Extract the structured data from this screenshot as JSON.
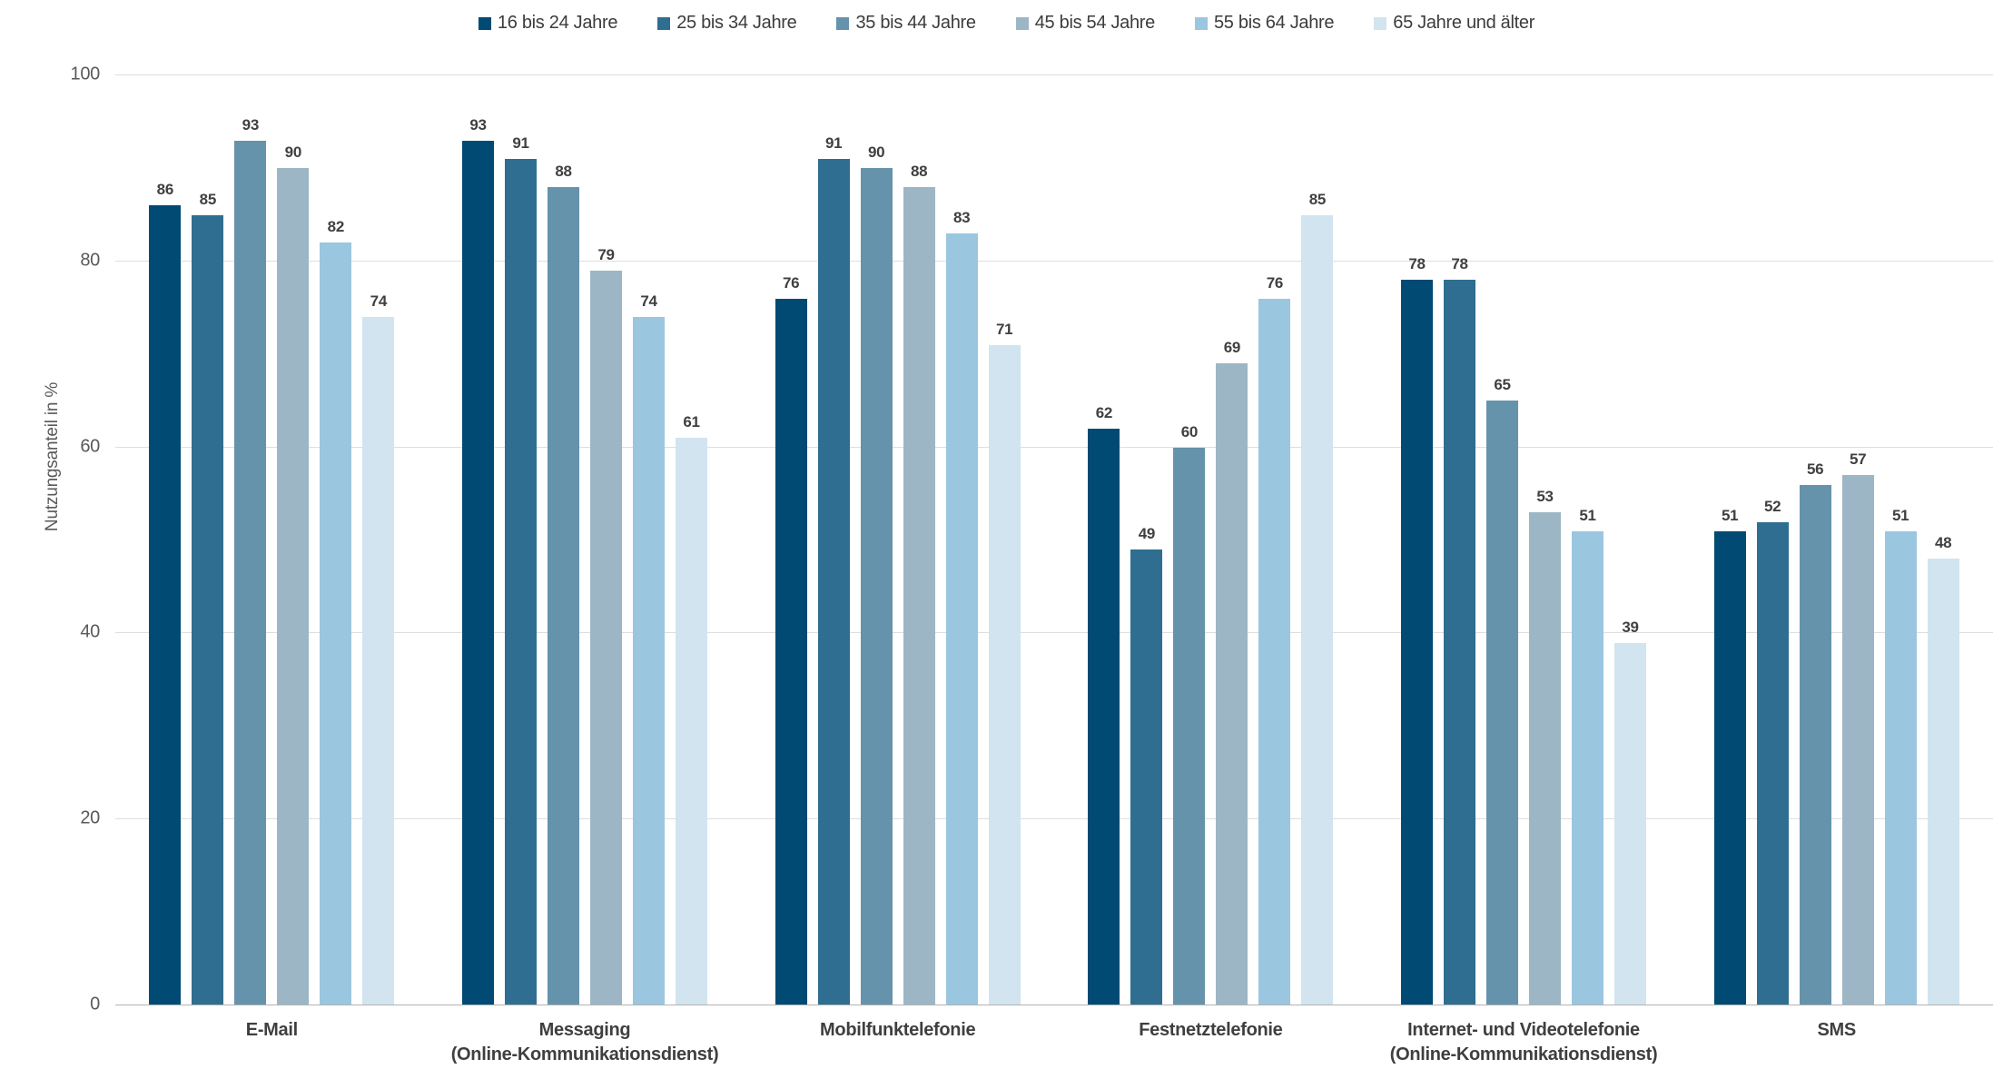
{
  "chart_data": {
    "type": "bar",
    "title": "",
    "ylabel": "Nutzungsanteil in %",
    "xlabel": "",
    "ylim": [
      0,
      100
    ],
    "yticks": [
      0,
      20,
      40,
      60,
      80,
      100
    ],
    "grid": true,
    "legend_position": "top-center",
    "categories": [
      [
        "E-Mail"
      ],
      [
        "Messaging",
        "(Online-Kommunikationsdienst)"
      ],
      [
        "Mobilfunktelefonie"
      ],
      [
        "Festnetztelefonie"
      ],
      [
        "Internet- und Videotelefonie",
        "(Online-Kommunikationsdienst)"
      ],
      [
        "SMS"
      ]
    ],
    "series": [
      {
        "name": "16 bis 24 Jahre",
        "color": "#004a73",
        "values": [
          86,
          93,
          76,
          62,
          78,
          51
        ]
      },
      {
        "name": "25 bis 34 Jahre",
        "color": "#2f6e90",
        "values": [
          85,
          91,
          91,
          49,
          78,
          52
        ]
      },
      {
        "name": "35 bis 44 Jahre",
        "color": "#6593ac",
        "values": [
          93,
          88,
          90,
          60,
          65,
          56
        ]
      },
      {
        "name": "45 bis 54 Jahre",
        "color": "#9db6c5",
        "values": [
          90,
          79,
          88,
          69,
          53,
          57
        ]
      },
      {
        "name": "55 bis 64 Jahre",
        "color": "#9ac6e0",
        "values": [
          82,
          74,
          83,
          76,
          51,
          51
        ]
      },
      {
        "name": "65 Jahre und älter",
        "color": "#d1e4f0",
        "values": [
          74,
          61,
          71,
          85,
          39,
          48
        ]
      }
    ],
    "colors": {
      "value_label": "#404040",
      "category_label": "#3f3f3f",
      "tick_label": "#595959",
      "gridline": "#dedede",
      "baseline": "#b3b3b3",
      "background": "#ffffff"
    }
  }
}
